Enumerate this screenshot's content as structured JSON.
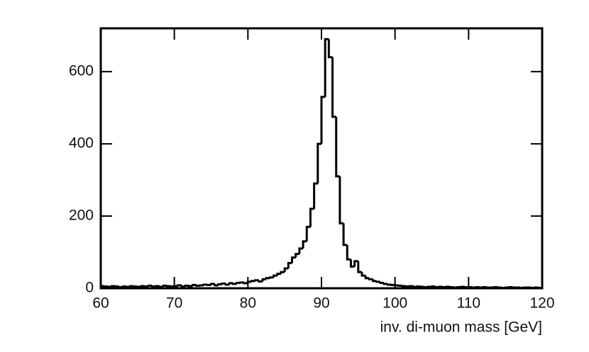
{
  "chart_data": {
    "type": "histogram",
    "xlabel": "inv. di-muon mass [GeV]",
    "bins": [
      60,
      60.5,
      61,
      61.5,
      62,
      62.5,
      63,
      63.5,
      64,
      64.5,
      65,
      65.5,
      66,
      66.5,
      67,
      67.5,
      68,
      68.5,
      69,
      69.5,
      70,
      70.5,
      71,
      71.5,
      72,
      72.5,
      73,
      73.5,
      74,
      74.5,
      75,
      75.5,
      76,
      76.5,
      77,
      77.5,
      78,
      78.5,
      79,
      79.5,
      80,
      80.5,
      81,
      81.5,
      82,
      82.5,
      83,
      83.5,
      84,
      84.5,
      85,
      85.5,
      86,
      86.5,
      87,
      87.5,
      88,
      88.5,
      89,
      89.5,
      90,
      90.5,
      91,
      91.5,
      92,
      92.5,
      93,
      93.5,
      94,
      94.5,
      95,
      95.5,
      96,
      96.5,
      97,
      97.5,
      98,
      98.5,
      99,
      99.5,
      100,
      100.5,
      101,
      101.5,
      102,
      102.5,
      103,
      103.5,
      104,
      104.5,
      105,
      105.5,
      106,
      106.5,
      107,
      107.5,
      108,
      108.5,
      109,
      109.5,
      110,
      110.5,
      111,
      111.5,
      112,
      112.5,
      113,
      113.5,
      114,
      114.5,
      115,
      115.5,
      116,
      116.5,
      117,
      117.5,
      118,
      118.5,
      119,
      119.5,
      120
    ],
    "values": [
      6,
      5,
      4,
      6,
      5,
      3,
      5,
      4,
      6,
      5,
      4,
      6,
      5,
      7,
      5,
      6,
      4,
      7,
      6,
      5,
      6,
      8,
      5,
      7,
      6,
      9,
      7,
      8,
      10,
      9,
      12,
      8,
      11,
      13,
      10,
      14,
      12,
      15,
      16,
      14,
      18,
      20,
      22,
      19,
      25,
      28,
      30,
      35,
      40,
      45,
      55,
      70,
      85,
      95,
      110,
      130,
      170,
      220,
      290,
      400,
      530,
      690,
      640,
      475,
      310,
      180,
      120,
      80,
      60,
      75,
      45,
      35,
      28,
      25,
      20,
      18,
      15,
      12,
      10,
      9,
      8,
      7,
      6,
      5,
      6,
      4,
      5,
      4,
      3,
      4,
      5,
      3,
      4,
      3,
      4,
      3,
      2,
      3,
      4,
      3,
      3,
      2,
      3,
      2,
      3,
      2,
      2,
      3,
      2,
      1,
      2,
      3,
      2,
      2,
      1,
      2,
      2,
      1,
      2,
      1
    ],
    "color": "#000000",
    "xlim": [
      60,
      120
    ],
    "ylim": [
      0,
      720
    ],
    "xticks": [
      60,
      70,
      80,
      90,
      100,
      110,
      120
    ],
    "yticks": [
      0,
      200,
      400,
      600
    ]
  }
}
